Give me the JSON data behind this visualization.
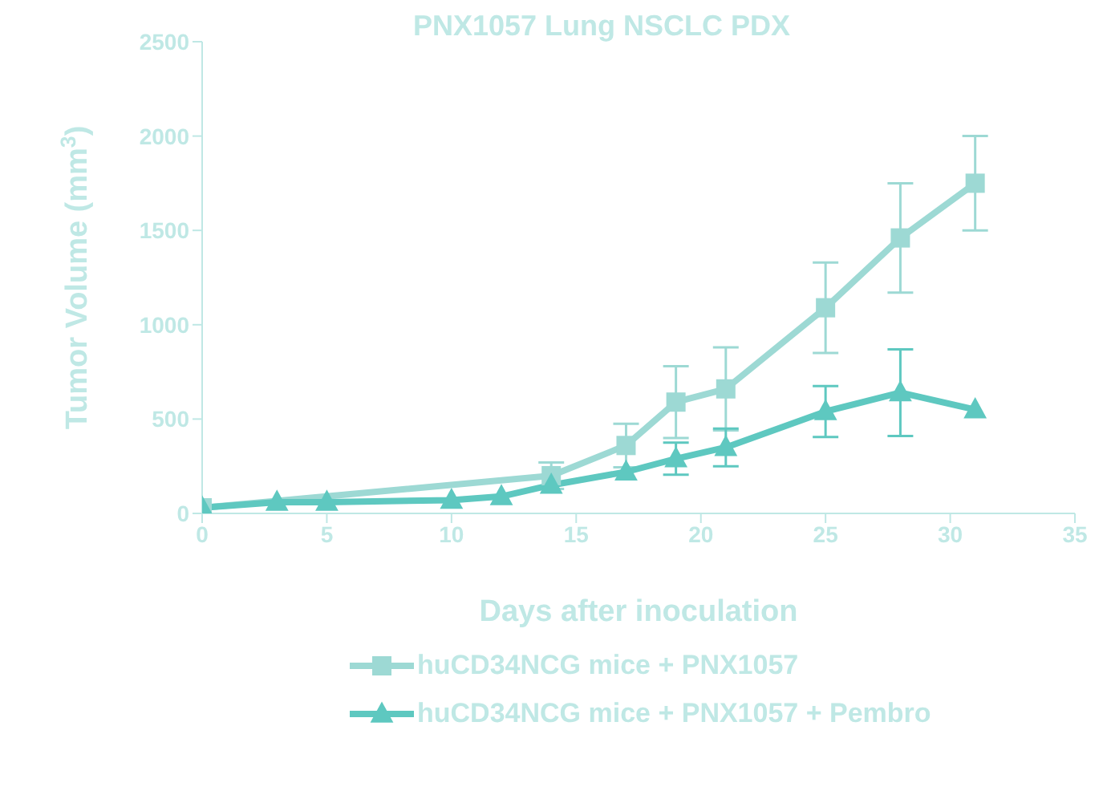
{
  "chart_data": {
    "type": "line",
    "title": "PNX1057 Lung NSCLC PDX",
    "xlabel": "Days after inoculation",
    "ylabel": "Tumor Volume (mm$^{3}$)",
    "x": [
      0,
      3,
      5,
      10,
      12,
      14,
      17,
      19,
      21,
      25,
      28,
      31
    ],
    "series": [
      {
        "name": "huCD34NCG mice + PNX1057",
        "color": "#9dd9d4",
        "marker": "square",
        "values": [
          30,
          null,
          null,
          null,
          null,
          200,
          360,
          590,
          660,
          1090,
          1460,
          1750
        ],
        "errors": [
          null,
          null,
          null,
          null,
          null,
          70,
          115,
          190,
          220,
          240,
          290,
          250
        ]
      },
      {
        "name": "huCD34NCG mice + PNX1057 + Pembro",
        "color": "#5ec8c0",
        "marker": "triangle",
        "values": [
          30,
          60,
          60,
          70,
          90,
          150,
          220,
          290,
          350,
          540,
          640,
          550
        ],
        "errors": [
          null,
          null,
          null,
          null,
          null,
          null,
          null,
          85,
          100,
          135,
          230,
          null
        ]
      }
    ],
    "xlim": [
      0,
      35
    ],
    "xticks": [
      0,
      5,
      10,
      15,
      20,
      25,
      30,
      35
    ],
    "ylim": [
      0,
      2500
    ],
    "yticks": [
      0,
      500,
      1000,
      1500,
      2000,
      2500
    ],
    "grid": false,
    "legend": "bottom",
    "line_style": "solid"
  }
}
